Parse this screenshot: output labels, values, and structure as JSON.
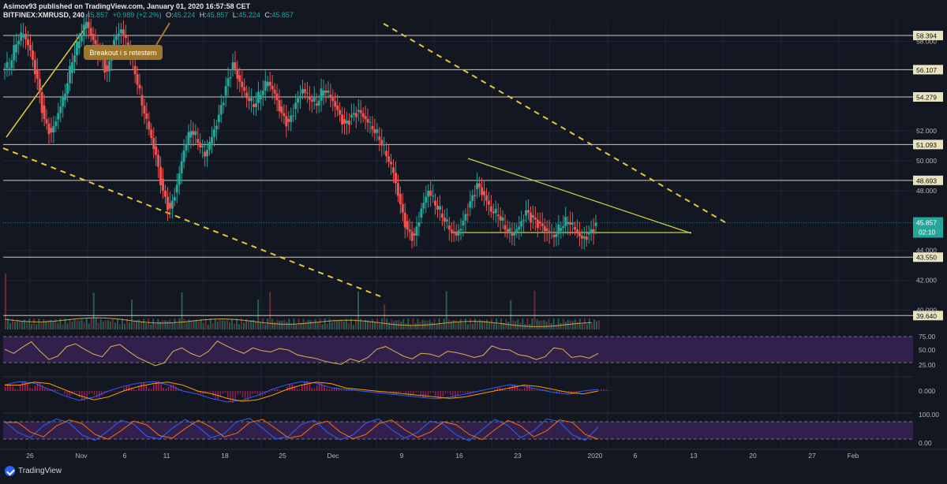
{
  "header": {
    "line1": "Asimov93 published on TradingView.com, January 01, 2020 16:57:58 CET",
    "symbol": "BITFINEX:XMRUSD, 240",
    "last": "45.857",
    "change": "+0.989 (+2.2%)",
    "open_label": "O:",
    "open": "45.224",
    "high_label": "H:",
    "high": "45.857",
    "low_label": "L:",
    "low": "45.224",
    "close_label": "C:",
    "close": "45.857"
  },
  "annotation": {
    "text": "Breakout i s retestem"
  },
  "branding": {
    "name": "TradingView"
  },
  "colors": {
    "background": "#131722",
    "grid": "#1f2433",
    "hline": "#c8c8c8",
    "up": "#26a69a",
    "down": "#ef5350",
    "trend_dashed": "#e6c735",
    "triangle": "#cfcf4a",
    "rsi_line": "#e0b24a",
    "band": "#3b2357",
    "macd": "#2962ff",
    "signal": "#ff9800",
    "stoch_k": "#2962ff",
    "stoch_d": "#ff6d00"
  },
  "chart_data": {
    "type": "line",
    "candle_series": [
      56.2,
      57.8,
      58.5,
      57.4,
      55.5,
      52.8,
      51.9,
      53.2,
      54.5,
      56.6,
      58.0,
      59.3,
      58.1,
      57.2,
      56.0,
      58.1,
      58.8,
      57.5,
      55.8,
      53.7,
      52.1,
      50.4,
      48.0,
      46.8,
      48.4,
      50.7,
      52.0,
      51.2,
      50.3,
      51.6,
      53.1,
      55.0,
      56.6,
      55.3,
      54.2,
      53.6,
      54.4,
      55.3,
      54.5,
      53.2,
      52.6,
      53.9,
      54.8,
      54.1,
      53.7,
      54.7,
      54.3,
      53.4,
      52.5,
      53.1,
      53.4,
      52.8,
      52.1,
      51.4,
      50.3,
      49.2,
      47.1,
      45.4,
      45.0,
      46.8,
      48.0,
      47.0,
      46.2,
      45.4,
      45.0,
      46.0,
      47.3,
      48.5,
      47.7,
      46.6,
      46.3,
      45.4,
      45.0,
      45.6,
      46.7,
      46.2,
      45.8,
      45.3,
      44.9,
      45.5,
      45.9,
      45.4,
      44.8,
      45.2,
      45.857
    ],
    "price_levels": [
      "58.394",
      "56.107",
      "54.279",
      "51.093",
      "48.693",
      "43.550",
      "39.640"
    ],
    "current_price": "45.857",
    "countdown": "02:10",
    "y_axis_ticks": [
      "58.000",
      "52.000",
      "50.000",
      "48.000",
      "44.000",
      "42.000",
      "40.000"
    ],
    "x_axis_ticks": [
      "26",
      "Nov",
      "6",
      "11",
      "18",
      "25",
      "Dec",
      "9",
      "16",
      "23",
      "2020",
      "6",
      "13",
      "20",
      "27",
      "Feb"
    ],
    "rsi_ticks": [
      "75.00",
      "50.00",
      "25.00"
    ],
    "macd_ticks": [
      "0.000"
    ],
    "stoch_ticks": [
      "100.00",
      "0.00"
    ],
    "rsi_series": [
      58,
      52,
      61,
      69,
      55,
      43,
      48,
      62,
      66,
      58,
      51,
      47,
      62,
      65,
      55,
      46,
      40,
      34,
      38,
      55,
      60,
      52,
      47,
      55,
      70,
      63,
      57,
      52,
      60,
      56,
      54,
      59,
      57,
      50,
      47,
      45,
      41,
      38,
      36,
      44,
      40,
      46,
      58,
      62,
      55,
      48,
      44,
      52,
      51,
      47,
      55,
      53,
      50,
      46,
      49,
      63,
      58,
      57,
      50,
      48,
      43,
      47,
      60,
      58,
      46,
      48,
      45,
      52
    ],
    "macd_series": [
      0.4,
      0.6,
      0.5,
      0.1,
      -0.3,
      -0.6,
      -0.4,
      0.0,
      0.3,
      0.5,
      0.6,
      0.4,
      0.0,
      -0.2,
      -0.5,
      -0.7,
      -0.6,
      -0.3,
      0.1,
      0.4,
      0.6,
      0.5,
      0.2,
      0.1,
      0.0,
      -0.1,
      -0.2,
      -0.3,
      -0.4,
      -0.5,
      -0.4,
      -0.2,
      0.0,
      0.2,
      0.4,
      0.3,
      0.1,
      -0.1,
      -0.2,
      0.0,
      0.1
    ],
    "stoch_series": [
      80,
      40,
      20,
      65,
      90,
      75,
      30,
      10,
      45,
      85,
      70,
      25,
      15,
      55,
      88,
      60,
      20,
      35,
      80,
      92,
      55,
      15,
      25,
      70,
      85,
      40,
      12,
      30,
      75,
      90,
      50,
      18,
      40,
      82,
      70,
      30,
      8,
      50,
      88,
      65,
      20,
      45,
      90,
      80,
      30,
      10,
      60
    ],
    "ylim": [
      38.6,
      59.4
    ]
  }
}
